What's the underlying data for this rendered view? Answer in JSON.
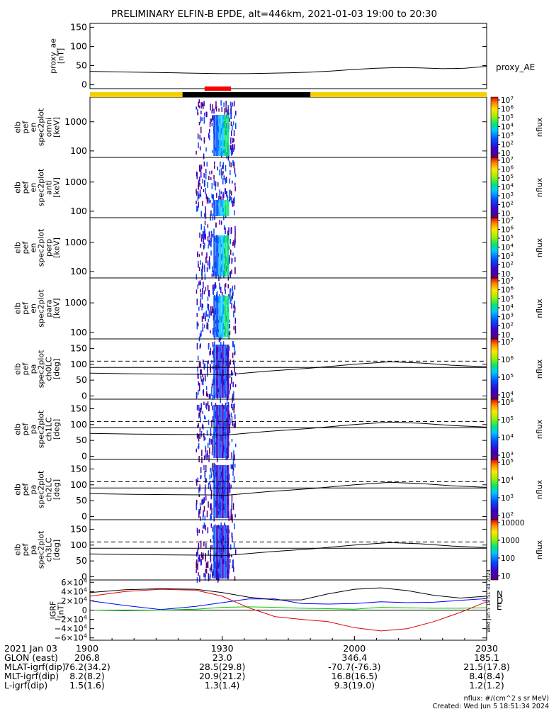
{
  "title": "PRELIMINARY ELFIN-B EPDE, alt=446km, 2021-01-03 19:00 to 20:30",
  "time_range_min": [
    0,
    90
  ],
  "status_bar": {
    "colors": {
      "sci": "#000000",
      "normal": "#f5d000",
      "marker": "#ff0000"
    },
    "black_interval_min": [
      21,
      50
    ],
    "red_interval_min": [
      26,
      32
    ]
  },
  "chart_data": [
    {
      "id": "proxy_ae",
      "type": "line",
      "ylabel_lines": [
        "proxy_ae",
        "[nT]"
      ],
      "legend": "proxy_AE",
      "yticks": [
        "150",
        "100",
        "50",
        "0"
      ],
      "ylim": [
        -10,
        160
      ],
      "x": [
        0,
        5,
        10,
        15,
        20,
        25,
        30,
        35,
        40,
        45,
        50,
        55,
        60,
        65,
        70,
        75,
        80,
        85,
        90
      ],
      "y": [
        35,
        34,
        33,
        32,
        31,
        30,
        29,
        29,
        30,
        31,
        33,
        36,
        40,
        43,
        45,
        44,
        42,
        43,
        48
      ],
      "color": "#000000"
    },
    {
      "id": "en_omni",
      "type": "heatmap",
      "ylabel_lines": [
        "elb",
        "pef",
        "en",
        "spec2plot",
        "omni",
        "[keV]"
      ],
      "yticks": [
        "1000",
        "100"
      ],
      "scale": "log",
      "ylim": [
        60,
        7000
      ],
      "cbar_label": "nflux",
      "cbar_ticks": [
        "10",
        "10^2",
        "10^3",
        "10^4",
        "10^5",
        "10^6",
        "10^7"
      ]
    },
    {
      "id": "en_anti",
      "type": "heatmap",
      "ylabel_lines": [
        "elb",
        "pef",
        "en",
        "spec2plot",
        "anti",
        "[keV]"
      ],
      "yticks": [
        "1000",
        "100"
      ],
      "scale": "log",
      "ylim": [
        60,
        7000
      ],
      "cbar_label": "nflux",
      "cbar_ticks": [
        "10",
        "10^2",
        "10^3",
        "10^4",
        "10^5",
        "10^6",
        "10^7"
      ]
    },
    {
      "id": "en_perp",
      "type": "heatmap",
      "ylabel_lines": [
        "elb",
        "pef",
        "en",
        "spec2plot",
        "perp",
        "[keV]"
      ],
      "yticks": [
        "1000",
        "100"
      ],
      "scale": "log",
      "ylim": [
        60,
        7000
      ],
      "cbar_label": "nflux",
      "cbar_ticks": [
        "10",
        "10^2",
        "10^3",
        "10^4",
        "10^5",
        "10^6",
        "10^7"
      ]
    },
    {
      "id": "en_para",
      "type": "heatmap",
      "ylabel_lines": [
        "elb",
        "pef",
        "en",
        "spec2plot",
        "para",
        "[keV]"
      ],
      "yticks": [
        "1000",
        "100"
      ],
      "scale": "log",
      "ylim": [
        60,
        7000
      ],
      "cbar_label": "nflux",
      "cbar_ticks": [
        "10",
        "10^2",
        "10^3",
        "10^4",
        "10^5",
        "10^6",
        "10^7"
      ]
    },
    {
      "id": "pa_ch0",
      "type": "heatmap",
      "ylabel_lines": [
        "elb",
        "pef",
        "pa",
        "spec2plot",
        "ch0LC",
        "[deg]"
      ],
      "yticks": [
        "150",
        "100",
        "50",
        "0"
      ],
      "ylim": [
        -10,
        180
      ],
      "cbar_label": "nflux",
      "cbar_ticks": [
        "10^4",
        "10^5",
        "10^6",
        "10^7"
      ]
    },
    {
      "id": "pa_ch1",
      "type": "heatmap",
      "ylabel_lines": [
        "elb",
        "pef",
        "pa",
        "spec2plot",
        "ch1LC",
        "[deg]"
      ],
      "yticks": [
        "150",
        "100",
        "50",
        "0"
      ],
      "ylim": [
        -10,
        180
      ],
      "cbar_label": "nflux",
      "cbar_ticks": [
        "10^3",
        "10^4",
        "10^5",
        "10^6"
      ]
    },
    {
      "id": "pa_ch2",
      "type": "heatmap",
      "ylabel_lines": [
        "elb",
        "pef",
        "pa",
        "spec2plot",
        "ch2LC",
        "[deg]"
      ],
      "yticks": [
        "150",
        "100",
        "50",
        "0"
      ],
      "ylim": [
        -10,
        180
      ],
      "cbar_label": "nflux",
      "cbar_ticks": [
        "10^2",
        "10^3",
        "10^4",
        "10^5"
      ]
    },
    {
      "id": "pa_ch3",
      "type": "heatmap",
      "ylabel_lines": [
        "elb",
        "pef",
        "pa",
        "spec2plot",
        "ch3LC",
        "[deg]"
      ],
      "yticks": [
        "150",
        "100",
        "50",
        "0"
      ],
      "ylim": [
        -10,
        180
      ],
      "cbar_label": "nflux",
      "cbar_ticks": [
        "10",
        "100",
        "1000",
        "10000"
      ]
    },
    {
      "id": "igrf",
      "type": "line",
      "ylabel_lines": [
        "IGRF",
        "[nT]"
      ],
      "yticks": [
        "6×10^4",
        "4×10^4",
        "2×10^4",
        "0",
        "−2×10^4",
        "−4×10^4",
        "−6×10^4"
      ],
      "ylim": [
        -65000,
        65000
      ],
      "legend": [
        "N",
        "E",
        "D"
      ],
      "series": [
        {
          "name": "N",
          "color": "#0000ff",
          "x": [
            0,
            8,
            16,
            24,
            30,
            36,
            42,
            48,
            54,
            60,
            66,
            72,
            78,
            84,
            90
          ],
          "y": [
            20000,
            10000,
            1000,
            8000,
            16000,
            24000,
            24000,
            14000,
            13000,
            14000,
            18000,
            16000,
            17000,
            21000,
            25000
          ]
        },
        {
          "name": "E",
          "color": "#00cc00",
          "x": [
            0,
            8,
            16,
            24,
            30,
            36,
            42,
            48,
            54,
            60,
            66,
            72,
            78,
            84,
            90
          ],
          "y": [
            0,
            -1000,
            0,
            2000,
            6000,
            7000,
            6000,
            4000,
            3000,
            2000,
            6000,
            5000,
            4000,
            4000,
            5000
          ]
        },
        {
          "name": "D",
          "color": "#dd0000",
          "x": [
            0,
            8,
            16,
            24,
            30,
            36,
            42,
            48,
            54,
            60,
            66,
            72,
            78,
            84,
            90
          ],
          "y": [
            30000,
            40000,
            45000,
            43000,
            30000,
            5000,
            -14000,
            -20000,
            -25000,
            -38000,
            -45000,
            -40000,
            -25000,
            -5000,
            18000
          ]
        },
        {
          "name": "total",
          "color": "#000000",
          "x": [
            0,
            8,
            16,
            24,
            30,
            36,
            42,
            48,
            54,
            60,
            66,
            72,
            78,
            84,
            90
          ],
          "y": [
            38000,
            44000,
            46000,
            45000,
            38000,
            28000,
            22000,
            22000,
            35000,
            45000,
            48000,
            42000,
            32000,
            26000,
            30000
          ]
        }
      ]
    }
  ],
  "axis_footer": {
    "ticks_x_min": [
      0,
      30,
      60,
      90
    ],
    "rows": [
      {
        "label": "2021 Jan 03",
        "values": [
          "1900",
          "1930",
          "2000",
          "2030"
        ]
      },
      {
        "label": "GLON (east)",
        "values": [
          "206.8",
          "23.0",
          "346.4",
          "185.1"
        ]
      },
      {
        "label": "MLAT-igrf(dip)",
        "values": [
          "76.2(34.2)",
          "28.5(29.8)",
          "-70.7(-76.3)",
          "21.5(17.8)"
        ]
      },
      {
        "label": "MLT-igrf(dip)",
        "values": [
          "8.2(8.2)",
          "20.9(21.2)",
          "16.8(16.5)",
          "8.4(8.4)"
        ]
      },
      {
        "label": "L-igrf(dip)",
        "values": [
          "1.5(1.6)",
          "1.3(1.4)",
          "9.3(19.0)",
          "1.2(1.2)"
        ]
      }
    ]
  },
  "side_stamp": "Wed Jun 5 18:51:34 2024",
  "footnote": {
    "units": "nflux: #/(cm^2 s sr MeV)",
    "created": "Created: Wed Jun  5 18:51:34 2024"
  }
}
